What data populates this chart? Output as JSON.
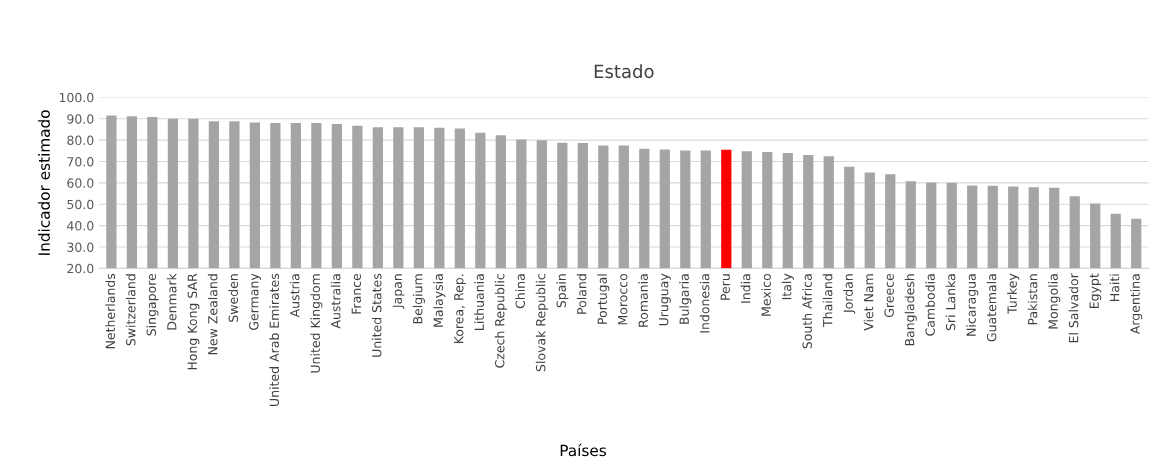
{
  "chart_data": {
    "type": "bar",
    "title": "Estado",
    "xlabel": "Países",
    "ylabel": "Indicador estimado",
    "categories": [
      "Netherlands",
      "Switzerland",
      "Singapore",
      "Denmark",
      "Hong Kong SAR",
      "New Zealand",
      "Sweden",
      "Germany",
      "United Arab Emirates",
      "Austria",
      "United Kingdom",
      "Australia",
      "France",
      "United States",
      "Japan",
      "Belgium",
      "Malaysia",
      "Korea, Rep.",
      "Lithuania",
      "Czech Republic",
      "China",
      "Slovak Republic",
      "Spain",
      "Poland",
      "Portugal",
      "Morocco",
      "Romania",
      "Uruguay",
      "Bulgaria",
      "Indonesia",
      "Peru",
      "India",
      "Mexico",
      "Italy",
      "South Africa",
      "Thailand",
      "Jordan",
      "Viet Nam",
      "Greece",
      "Bangladesh",
      "Cambodia",
      "Sri Lanka",
      "Nicaragua",
      "Guatemala",
      "Turkey",
      "Pakistan",
      "Mongolia",
      "El Salvador",
      "Egypt",
      "Haiti",
      "Argentina"
    ],
    "values": [
      91.5,
      91.2,
      90.8,
      90.0,
      90.0,
      88.8,
      88.8,
      88.3,
      88.0,
      88.0,
      88.0,
      87.5,
      86.7,
      86.0,
      86.0,
      86.0,
      85.8,
      85.4,
      83.5,
      82.3,
      80.3,
      80.0,
      78.8,
      78.7,
      77.5,
      77.5,
      76.0,
      75.6,
      75.2,
      75.2,
      75.5,
      74.8,
      74.4,
      74.0,
      73.0,
      72.5,
      67.5,
      64.8,
      64.0,
      60.8,
      60.2,
      60.0,
      58.8,
      58.7,
      58.3,
      58.0,
      57.7,
      53.8,
      50.4,
      45.5,
      43.2
    ],
    "colors": [
      "#a5a5a5",
      "#a5a5a5",
      "#a5a5a5",
      "#a5a5a5",
      "#a5a5a5",
      "#a5a5a5",
      "#a5a5a5",
      "#a5a5a5",
      "#a5a5a5",
      "#a5a5a5",
      "#a5a5a5",
      "#a5a5a5",
      "#a5a5a5",
      "#a5a5a5",
      "#a5a5a5",
      "#a5a5a5",
      "#a5a5a5",
      "#a5a5a5",
      "#a5a5a5",
      "#a5a5a5",
      "#a5a5a5",
      "#a5a5a5",
      "#a5a5a5",
      "#a5a5a5",
      "#a5a5a5",
      "#a5a5a5",
      "#a5a5a5",
      "#a5a5a5",
      "#a5a5a5",
      "#a5a5a5",
      "#ff0000",
      "#a5a5a5",
      "#a5a5a5",
      "#a5a5a5",
      "#a5a5a5",
      "#a5a5a5",
      "#a5a5a5",
      "#a5a5a5",
      "#a5a5a5",
      "#a5a5a5",
      "#a5a5a5",
      "#a5a5a5",
      "#a5a5a5",
      "#a5a5a5",
      "#a5a5a5",
      "#a5a5a5",
      "#a5a5a5",
      "#a5a5a5",
      "#a5a5a5",
      "#a5a5a5",
      "#a5a5a5"
    ],
    "ylim": [
      20,
      100
    ],
    "yticks": [
      {
        "value": 20,
        "label": "20.0"
      },
      {
        "value": 30,
        "label": "30.0"
      },
      {
        "value": 40,
        "label": "40.0"
      },
      {
        "value": 50,
        "label": "50.0"
      },
      {
        "value": 60,
        "label": "60.0"
      },
      {
        "value": 70,
        "label": "70.0"
      },
      {
        "value": 80,
        "label": "80.0"
      },
      {
        "value": 90,
        "label": "90.0"
      },
      {
        "value": 100,
        "label": "100.0"
      }
    ],
    "grid": "y"
  }
}
